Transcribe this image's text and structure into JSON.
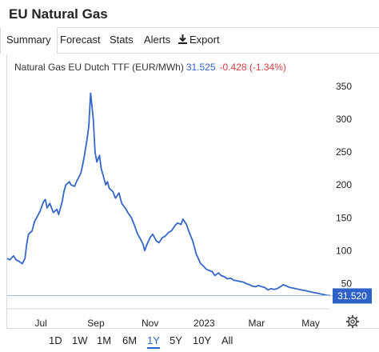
{
  "header": {
    "title": "EU Natural Gas"
  },
  "tabs": [
    {
      "label": "Summary",
      "active": true
    },
    {
      "label": "Forecast"
    },
    {
      "label": "Stats"
    },
    {
      "label": "Alerts"
    },
    {
      "label": "Export",
      "icon": "download-icon"
    }
  ],
  "quote": {
    "name": "Natural Gas EU Dutch TTF (EUR/MWh)",
    "price": "31.525",
    "change": "-0.428 (-1.34%)"
  },
  "chart_data": {
    "type": "line",
    "title": "",
    "xlabel": "",
    "ylabel": "",
    "x_ticks": [
      "Jul",
      "Sep",
      "Nov",
      "2023",
      "Mar",
      "May"
    ],
    "y_ticks": [
      50,
      100,
      150,
      200,
      250,
      300,
      350
    ],
    "ylim": [
      15,
      360
    ],
    "grid": false,
    "y_axis_side": "right",
    "last_value_label": "31.520",
    "line_color": "#3466c8",
    "series": [
      {
        "name": "",
        "points": [
          [
            "2022-05-24",
            88
          ],
          [
            "2022-05-27",
            86
          ],
          [
            "2022-05-31",
            92
          ],
          [
            "2022-06-03",
            86
          ],
          [
            "2022-06-06",
            84
          ],
          [
            "2022-06-10",
            80
          ],
          [
            "2022-06-13",
            88
          ],
          [
            "2022-06-15",
            110
          ],
          [
            "2022-06-17",
            125
          ],
          [
            "2022-06-21",
            130
          ],
          [
            "2022-06-24",
            145
          ],
          [
            "2022-06-27",
            152
          ],
          [
            "2022-06-30",
            160
          ],
          [
            "2022-07-04",
            175
          ],
          [
            "2022-07-06",
            178
          ],
          [
            "2022-07-08",
            165
          ],
          [
            "2022-07-11",
            172
          ],
          [
            "2022-07-13",
            165
          ],
          [
            "2022-07-15",
            158
          ],
          [
            "2022-07-19",
            163
          ],
          [
            "2022-07-21",
            155
          ],
          [
            "2022-07-25",
            175
          ],
          [
            "2022-07-27",
            190
          ],
          [
            "2022-07-29",
            200
          ],
          [
            "2022-08-02",
            205
          ],
          [
            "2022-08-04",
            200
          ],
          [
            "2022-08-08",
            198
          ],
          [
            "2022-08-10",
            205
          ],
          [
            "2022-08-12",
            210
          ],
          [
            "2022-08-15",
            218
          ],
          [
            "2022-08-17",
            230
          ],
          [
            "2022-08-19",
            245
          ],
          [
            "2022-08-22",
            270
          ],
          [
            "2022-08-24",
            290
          ],
          [
            "2022-08-26",
            340
          ],
          [
            "2022-08-29",
            300
          ],
          [
            "2022-08-31",
            250
          ],
          [
            "2022-09-02",
            235
          ],
          [
            "2022-09-05",
            245
          ],
          [
            "2022-09-07",
            225
          ],
          [
            "2022-09-09",
            215
          ],
          [
            "2022-09-12",
            200
          ],
          [
            "2022-09-14",
            205
          ],
          [
            "2022-09-16",
            195
          ],
          [
            "2022-09-20",
            190
          ],
          [
            "2022-09-23",
            180
          ],
          [
            "2022-09-27",
            188
          ],
          [
            "2022-09-30",
            172
          ],
          [
            "2022-10-04",
            165
          ],
          [
            "2022-10-07",
            158
          ],
          [
            "2022-10-11",
            150
          ],
          [
            "2022-10-14",
            140
          ],
          [
            "2022-10-18",
            125
          ],
          [
            "2022-10-21",
            118
          ],
          [
            "2022-10-24",
            110
          ],
          [
            "2022-10-26",
            100
          ],
          [
            "2022-10-28",
            108
          ],
          [
            "2022-11-01",
            120
          ],
          [
            "2022-11-04",
            125
          ],
          [
            "2022-11-08",
            115
          ],
          [
            "2022-11-11",
            112
          ],
          [
            "2022-11-15",
            120
          ],
          [
            "2022-11-18",
            122
          ],
          [
            "2022-11-22",
            128
          ],
          [
            "2022-11-25",
            130
          ],
          [
            "2022-11-29",
            138
          ],
          [
            "2022-12-02",
            142
          ],
          [
            "2022-12-06",
            140
          ],
          [
            "2022-12-08",
            148
          ],
          [
            "2022-12-12",
            140
          ],
          [
            "2022-12-14",
            132
          ],
          [
            "2022-12-16",
            125
          ],
          [
            "2022-12-19",
            115
          ],
          [
            "2022-12-21",
            105
          ],
          [
            "2022-12-23",
            95
          ],
          [
            "2022-12-28",
            80
          ],
          [
            "2022-12-30",
            78
          ],
          [
            "2023-01-03",
            72
          ],
          [
            "2023-01-06",
            70
          ],
          [
            "2023-01-10",
            68
          ],
          [
            "2023-01-13",
            62
          ],
          [
            "2023-01-17",
            66
          ],
          [
            "2023-01-20",
            62
          ],
          [
            "2023-01-24",
            60
          ],
          [
            "2023-01-27",
            57
          ],
          [
            "2023-01-31",
            58
          ],
          [
            "2023-02-03",
            55
          ],
          [
            "2023-02-07",
            54
          ],
          [
            "2023-02-10",
            53
          ],
          [
            "2023-02-14",
            52
          ],
          [
            "2023-02-17",
            50
          ],
          [
            "2023-02-21",
            48
          ],
          [
            "2023-02-24",
            46
          ],
          [
            "2023-02-28",
            45
          ],
          [
            "2023-03-03",
            47
          ],
          [
            "2023-03-07",
            45
          ],
          [
            "2023-03-10",
            44
          ],
          [
            "2023-03-14",
            40
          ],
          [
            "2023-03-17",
            42
          ],
          [
            "2023-03-21",
            41
          ],
          [
            "2023-03-24",
            42
          ],
          [
            "2023-03-28",
            45
          ],
          [
            "2023-03-31",
            48
          ],
          [
            "2023-04-04",
            46
          ],
          [
            "2023-04-07",
            44
          ],
          [
            "2023-04-11",
            43
          ],
          [
            "2023-04-14",
            42
          ],
          [
            "2023-04-18",
            41
          ],
          [
            "2023-04-21",
            40
          ],
          [
            "2023-04-25",
            39
          ],
          [
            "2023-04-28",
            38
          ],
          [
            "2023-05-02",
            37
          ],
          [
            "2023-05-05",
            36
          ],
          [
            "2023-05-09",
            35
          ],
          [
            "2023-05-12",
            34
          ],
          [
            "2023-05-16",
            33
          ],
          [
            "2023-05-19",
            32
          ],
          [
            "2023-05-23",
            31.52
          ]
        ]
      }
    ]
  },
  "range_buttons": [
    {
      "label": "1D"
    },
    {
      "label": "1W"
    },
    {
      "label": "1M"
    },
    {
      "label": "6M"
    },
    {
      "label": "1Y",
      "active": true
    },
    {
      "label": "5Y"
    },
    {
      "label": "10Y"
    },
    {
      "label": "All"
    }
  ],
  "icons": {
    "settings": "gear-icon",
    "export": "download-icon"
  },
  "colors": {
    "line": "#3466c8",
    "accent": "#2e62c9",
    "negative": "#d23f3f",
    "price_tag": "#2e62c9"
  }
}
